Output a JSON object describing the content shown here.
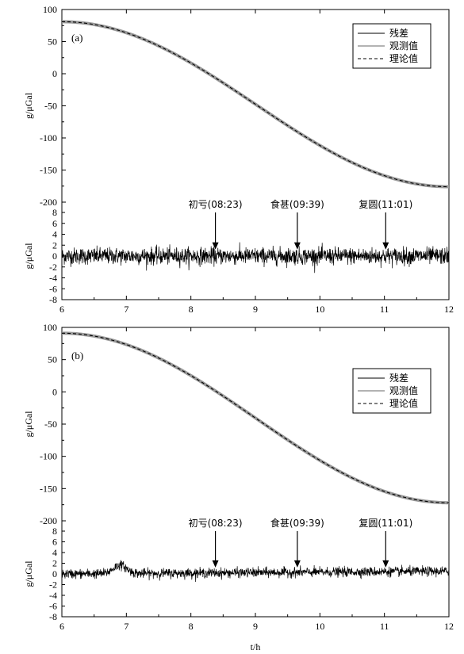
{
  "chart_data": [
    {
      "type": "line",
      "panel_label": "(a)",
      "x": {
        "range": [
          6,
          12
        ],
        "ticks": [
          "6",
          "7",
          "8",
          "9",
          "10",
          "11",
          "12"
        ]
      },
      "gravity_axis": {
        "label": "g/μGal",
        "range": [
          -200,
          100
        ],
        "ticks": [
          "100",
          "50",
          "0",
          "-50",
          "-100",
          "-150",
          "-200"
        ]
      },
      "residual_axis": {
        "label": "g/μGal",
        "range": [
          -8,
          8
        ],
        "ticks": [
          "8",
          "6",
          "4",
          "2",
          "0",
          "-2",
          "-4",
          "-6",
          "-8"
        ]
      },
      "gravity_curve": {
        "start": 81,
        "end": -176,
        "mid_hour": 9.0
      },
      "residual_noise_amplitude": 1.4,
      "residual_bump": null,
      "legend": [
        "残差",
        "观测值",
        "理论值"
      ],
      "annotations": [
        {
          "label": "初亏(08:23)",
          "x": 8.38
        },
        {
          "label": "食甚(09:39)",
          "x": 9.65
        },
        {
          "label": "复圆(11:01)",
          "x": 11.02
        }
      ]
    },
    {
      "type": "line",
      "panel_label": "(b)",
      "x": {
        "range": [
          6,
          12
        ],
        "ticks": [
          "6",
          "7",
          "8",
          "9",
          "10",
          "11",
          "12"
        ],
        "label": "t/h"
      },
      "gravity_axis": {
        "label": "g/μGal",
        "range": [
          -200,
          100
        ],
        "ticks": [
          "100",
          "50",
          "0",
          "-50",
          "-100",
          "-150",
          "-200"
        ]
      },
      "residual_axis": {
        "label": "g/μGal",
        "range": [
          -8,
          8
        ],
        "ticks": [
          "8",
          "6",
          "4",
          "2",
          "0",
          "-2",
          "-4",
          "-6",
          "-8"
        ]
      },
      "gravity_curve": {
        "start": 91,
        "end": -172,
        "mid_hour": 9.0
      },
      "residual_noise_amplitude": 0.8,
      "residual_bump": {
        "x": 6.9,
        "height": 1.6
      },
      "legend": [
        "残差",
        "观测值",
        "理论值"
      ],
      "annotations": [
        {
          "label": "初亏(08:23)",
          "x": 8.38
        },
        {
          "label": "食甚(09:39)",
          "x": 9.65
        },
        {
          "label": "复圆(11:01)",
          "x": 11.02
        }
      ]
    }
  ]
}
